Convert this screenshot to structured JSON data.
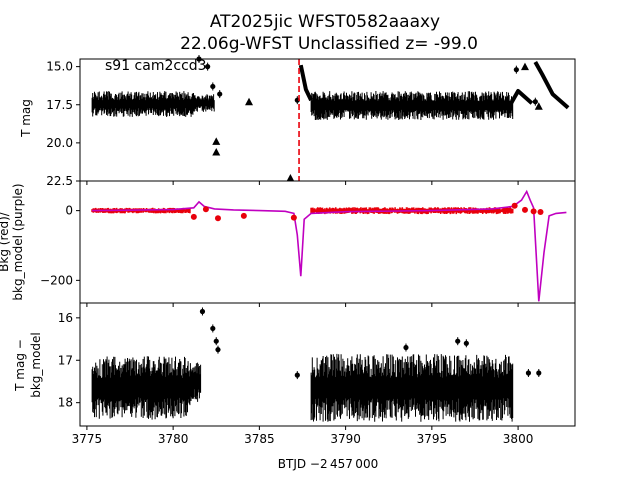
{
  "figure": {
    "title_line1": "AT2025jic  WFST0582aaaxy",
    "title_line2": "22.06g-WFST Unclassified z= -99.0",
    "xlabel": "BTJD −2 457 000",
    "x_ticks": [
      3775,
      3780,
      3785,
      3790,
      3795,
      3800
    ]
  },
  "chart_data": [
    {
      "type": "scatter",
      "panel": "top",
      "annotation": "s91 cam2ccd3",
      "ylabel": "T mag",
      "y_inverted": true,
      "xlim": [
        3774.6,
        3803.3
      ],
      "ylim": [
        22.5,
        14.5
      ],
      "y_ticks": [
        15.0,
        17.5,
        20.0,
        22.5
      ],
      "band_segments": [
        {
          "x_start": 3775.3,
          "x_end": 3781.2,
          "y_low": 16.6,
          "y_high": 18.3
        },
        {
          "x_start": 3781.2,
          "x_end": 3782.4,
          "y_low": 16.8,
          "y_high": 18.0
        },
        {
          "x_start": 3788.0,
          "x_end": 3799.7,
          "y_low": 16.6,
          "y_high": 18.5
        }
      ],
      "feature_line_x": [
        3787.4,
        3787.7,
        3788.0
      ],
      "feature_line_y": [
        14.9,
        16.5,
        17.2
      ],
      "feature2_line_x": [
        3799.6,
        3800.0,
        3800.8
      ],
      "feature2_line_y": [
        17.4,
        16.6,
        17.4
      ],
      "feature3_line_x": [
        3801.0,
        3801.4,
        3802.0,
        3802.9
      ],
      "feature3_line_y": [
        14.7,
        15.5,
        16.8,
        17.7
      ],
      "dots": [
        {
          "x": 3781.5,
          "y": 14.5
        },
        {
          "x": 3782.0,
          "y": 15.0
        },
        {
          "x": 3782.3,
          "y": 16.3
        },
        {
          "x": 3782.7,
          "y": 16.8
        },
        {
          "x": 3787.2,
          "y": 17.2
        },
        {
          "x": 3799.9,
          "y": 15.2
        },
        {
          "x": 3801.0,
          "y": 17.3
        }
      ],
      "triangles": [
        {
          "x": 3782.5,
          "y": 19.9
        },
        {
          "x": 3782.5,
          "y": 20.6
        },
        {
          "x": 3784.4,
          "y": 17.3
        },
        {
          "x": 3786.8,
          "y": 22.3
        },
        {
          "x": 3800.4,
          "y": 15.0
        },
        {
          "x": 3801.2,
          "y": 17.6
        }
      ],
      "marker_vline_x": 3787.3,
      "marker_color": "#e8000b"
    },
    {
      "type": "line",
      "panel": "middle",
      "ylabel_line1": "Bkg (red)/",
      "ylabel_line2": "bkg_model (purple)",
      "xlim": [
        3774.6,
        3803.3
      ],
      "ylim": [
        -265,
        85
      ],
      "y_ticks": [
        0,
        -200
      ],
      "bkg_color": "#e8000b",
      "model_color": "#c000c0",
      "model_x": [
        3775.3,
        3780.0,
        3781.2,
        3781.5,
        3781.8,
        3782.4,
        3783.5,
        3785.0,
        3786.5,
        3787.0,
        3787.2,
        3787.4,
        3787.6,
        3788.0,
        3790.0,
        3795.0,
        3798.5,
        3799.7,
        3800.2,
        3800.5,
        3800.7,
        3800.9,
        3801.2,
        3801.5,
        3801.8,
        3802.2,
        3802.8
      ],
      "model_y": [
        0,
        3,
        8,
        25,
        12,
        5,
        2,
        0,
        -2,
        -8,
        -70,
        -188,
        -25,
        -8,
        -3,
        0,
        5,
        12,
        30,
        55,
        30,
        8,
        -260,
        -120,
        -15,
        -8,
        -5
      ],
      "bkg_band_segments": [
        {
          "x_start": 3775.3,
          "x_end": 3781.0,
          "y_low": -8,
          "y_high": 8
        },
        {
          "x_start": 3788.0,
          "x_end": 3799.7,
          "y_low": -10,
          "y_high": 10
        }
      ],
      "bkg_points": [
        {
          "x": 3781.2,
          "y": -18
        },
        {
          "x": 3781.9,
          "y": 4
        },
        {
          "x": 3782.6,
          "y": -22
        },
        {
          "x": 3784.1,
          "y": -15
        },
        {
          "x": 3787.0,
          "y": -20
        },
        {
          "x": 3799.8,
          "y": 14
        },
        {
          "x": 3800.4,
          "y": 2
        },
        {
          "x": 3800.9,
          "y": -2
        },
        {
          "x": 3801.3,
          "y": -4
        }
      ]
    },
    {
      "type": "scatter",
      "panel": "bottom",
      "ylabel_line1": "T mag −",
      "ylabel_line2": "bkg_model",
      "y_inverted": true,
      "xlim": [
        3774.6,
        3803.3
      ],
      "ylim": [
        18.55,
        15.65
      ],
      "y_ticks": [
        16,
        17,
        18
      ],
      "band_segments": [
        {
          "x_start": 3775.3,
          "x_end": 3781.0,
          "y_low": 16.9,
          "y_high": 18.4
        },
        {
          "x_start": 3781.0,
          "x_end": 3781.6,
          "y_low": 17.0,
          "y_high": 18.0
        },
        {
          "x_start": 3788.0,
          "x_end": 3799.7,
          "y_low": 16.85,
          "y_high": 18.45
        }
      ],
      "dots": [
        {
          "x": 3781.7,
          "y": 15.85
        },
        {
          "x": 3782.3,
          "y": 16.25
        },
        {
          "x": 3782.5,
          "y": 16.55
        },
        {
          "x": 3782.6,
          "y": 16.75
        },
        {
          "x": 3787.2,
          "y": 17.35
        },
        {
          "x": 3793.5,
          "y": 16.7
        },
        {
          "x": 3796.5,
          "y": 16.55
        },
        {
          "x": 3797.0,
          "y": 16.6
        },
        {
          "x": 3800.6,
          "y": 17.3
        },
        {
          "x": 3801.2,
          "y": 17.3
        }
      ]
    }
  ]
}
